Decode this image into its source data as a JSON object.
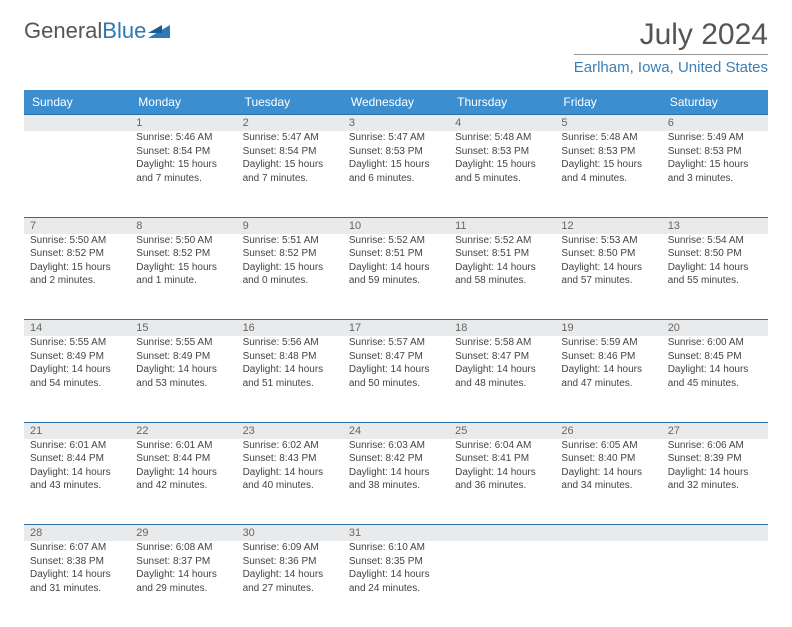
{
  "logo": {
    "text1": "General",
    "text2": "Blue"
  },
  "title": "July 2024",
  "location": "Earlham, Iowa, United States",
  "colors": {
    "header_bg": "#3b8fd0",
    "header_text": "#ffffff",
    "daynum_bg": "#e9eaeb",
    "accent_border": "#2a6fa5",
    "location_color": "#3b7fb5",
    "logo_icon": "#2f79b6"
  },
  "weekdays": [
    "Sunday",
    "Monday",
    "Tuesday",
    "Wednesday",
    "Thursday",
    "Friday",
    "Saturday"
  ],
  "weeks": [
    [
      null,
      {
        "n": "1",
        "sr": "Sunrise: 5:46 AM",
        "ss": "Sunset: 8:54 PM",
        "dl": "Daylight: 15 hours and 7 minutes."
      },
      {
        "n": "2",
        "sr": "Sunrise: 5:47 AM",
        "ss": "Sunset: 8:54 PM",
        "dl": "Daylight: 15 hours and 7 minutes."
      },
      {
        "n": "3",
        "sr": "Sunrise: 5:47 AM",
        "ss": "Sunset: 8:53 PM",
        "dl": "Daylight: 15 hours and 6 minutes."
      },
      {
        "n": "4",
        "sr": "Sunrise: 5:48 AM",
        "ss": "Sunset: 8:53 PM",
        "dl": "Daylight: 15 hours and 5 minutes."
      },
      {
        "n": "5",
        "sr": "Sunrise: 5:48 AM",
        "ss": "Sunset: 8:53 PM",
        "dl": "Daylight: 15 hours and 4 minutes."
      },
      {
        "n": "6",
        "sr": "Sunrise: 5:49 AM",
        "ss": "Sunset: 8:53 PM",
        "dl": "Daylight: 15 hours and 3 minutes."
      }
    ],
    [
      {
        "n": "7",
        "sr": "Sunrise: 5:50 AM",
        "ss": "Sunset: 8:52 PM",
        "dl": "Daylight: 15 hours and 2 minutes."
      },
      {
        "n": "8",
        "sr": "Sunrise: 5:50 AM",
        "ss": "Sunset: 8:52 PM",
        "dl": "Daylight: 15 hours and 1 minute."
      },
      {
        "n": "9",
        "sr": "Sunrise: 5:51 AM",
        "ss": "Sunset: 8:52 PM",
        "dl": "Daylight: 15 hours and 0 minutes."
      },
      {
        "n": "10",
        "sr": "Sunrise: 5:52 AM",
        "ss": "Sunset: 8:51 PM",
        "dl": "Daylight: 14 hours and 59 minutes."
      },
      {
        "n": "11",
        "sr": "Sunrise: 5:52 AM",
        "ss": "Sunset: 8:51 PM",
        "dl": "Daylight: 14 hours and 58 minutes."
      },
      {
        "n": "12",
        "sr": "Sunrise: 5:53 AM",
        "ss": "Sunset: 8:50 PM",
        "dl": "Daylight: 14 hours and 57 minutes."
      },
      {
        "n": "13",
        "sr": "Sunrise: 5:54 AM",
        "ss": "Sunset: 8:50 PM",
        "dl": "Daylight: 14 hours and 55 minutes."
      }
    ],
    [
      {
        "n": "14",
        "sr": "Sunrise: 5:55 AM",
        "ss": "Sunset: 8:49 PM",
        "dl": "Daylight: 14 hours and 54 minutes."
      },
      {
        "n": "15",
        "sr": "Sunrise: 5:55 AM",
        "ss": "Sunset: 8:49 PM",
        "dl": "Daylight: 14 hours and 53 minutes."
      },
      {
        "n": "16",
        "sr": "Sunrise: 5:56 AM",
        "ss": "Sunset: 8:48 PM",
        "dl": "Daylight: 14 hours and 51 minutes."
      },
      {
        "n": "17",
        "sr": "Sunrise: 5:57 AM",
        "ss": "Sunset: 8:47 PM",
        "dl": "Daylight: 14 hours and 50 minutes."
      },
      {
        "n": "18",
        "sr": "Sunrise: 5:58 AM",
        "ss": "Sunset: 8:47 PM",
        "dl": "Daylight: 14 hours and 48 minutes."
      },
      {
        "n": "19",
        "sr": "Sunrise: 5:59 AM",
        "ss": "Sunset: 8:46 PM",
        "dl": "Daylight: 14 hours and 47 minutes."
      },
      {
        "n": "20",
        "sr": "Sunrise: 6:00 AM",
        "ss": "Sunset: 8:45 PM",
        "dl": "Daylight: 14 hours and 45 minutes."
      }
    ],
    [
      {
        "n": "21",
        "sr": "Sunrise: 6:01 AM",
        "ss": "Sunset: 8:44 PM",
        "dl": "Daylight: 14 hours and 43 minutes."
      },
      {
        "n": "22",
        "sr": "Sunrise: 6:01 AM",
        "ss": "Sunset: 8:44 PM",
        "dl": "Daylight: 14 hours and 42 minutes."
      },
      {
        "n": "23",
        "sr": "Sunrise: 6:02 AM",
        "ss": "Sunset: 8:43 PM",
        "dl": "Daylight: 14 hours and 40 minutes."
      },
      {
        "n": "24",
        "sr": "Sunrise: 6:03 AM",
        "ss": "Sunset: 8:42 PM",
        "dl": "Daylight: 14 hours and 38 minutes."
      },
      {
        "n": "25",
        "sr": "Sunrise: 6:04 AM",
        "ss": "Sunset: 8:41 PM",
        "dl": "Daylight: 14 hours and 36 minutes."
      },
      {
        "n": "26",
        "sr": "Sunrise: 6:05 AM",
        "ss": "Sunset: 8:40 PM",
        "dl": "Daylight: 14 hours and 34 minutes."
      },
      {
        "n": "27",
        "sr": "Sunrise: 6:06 AM",
        "ss": "Sunset: 8:39 PM",
        "dl": "Daylight: 14 hours and 32 minutes."
      }
    ],
    [
      {
        "n": "28",
        "sr": "Sunrise: 6:07 AM",
        "ss": "Sunset: 8:38 PM",
        "dl": "Daylight: 14 hours and 31 minutes."
      },
      {
        "n": "29",
        "sr": "Sunrise: 6:08 AM",
        "ss": "Sunset: 8:37 PM",
        "dl": "Daylight: 14 hours and 29 minutes."
      },
      {
        "n": "30",
        "sr": "Sunrise: 6:09 AM",
        "ss": "Sunset: 8:36 PM",
        "dl": "Daylight: 14 hours and 27 minutes."
      },
      {
        "n": "31",
        "sr": "Sunrise: 6:10 AM",
        "ss": "Sunset: 8:35 PM",
        "dl": "Daylight: 14 hours and 24 minutes."
      },
      null,
      null,
      null
    ]
  ]
}
